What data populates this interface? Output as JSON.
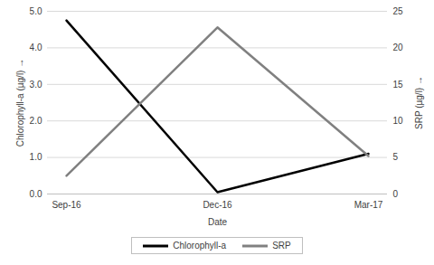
{
  "chart_data": {
    "type": "line",
    "x_label": "Date",
    "y_label": "Chlorophyll-a (µg/l)",
    "y2_label": "SRP (µg/l)",
    "categories": [
      "Sep-16",
      "Dec-16",
      "Mar-17"
    ],
    "series": [
      {
        "name": "Chlorophyll-a",
        "color": "#000000",
        "values": [
          4.75,
          0.05,
          1.1
        ]
      },
      {
        "name": "SRP",
        "color": "#808080",
        "axis": "y2",
        "values": [
          2.5,
          22.8,
          5.2
        ]
      }
    ],
    "ylim": [
      0,
      5
    ],
    "yticks": [
      0,
      1,
      2,
      3,
      4,
      5
    ],
    "y2lim": [
      0,
      25
    ],
    "y2ticks": [
      0,
      5,
      10,
      15,
      20,
      25
    ],
    "grid": true,
    "legend": "bottom"
  }
}
